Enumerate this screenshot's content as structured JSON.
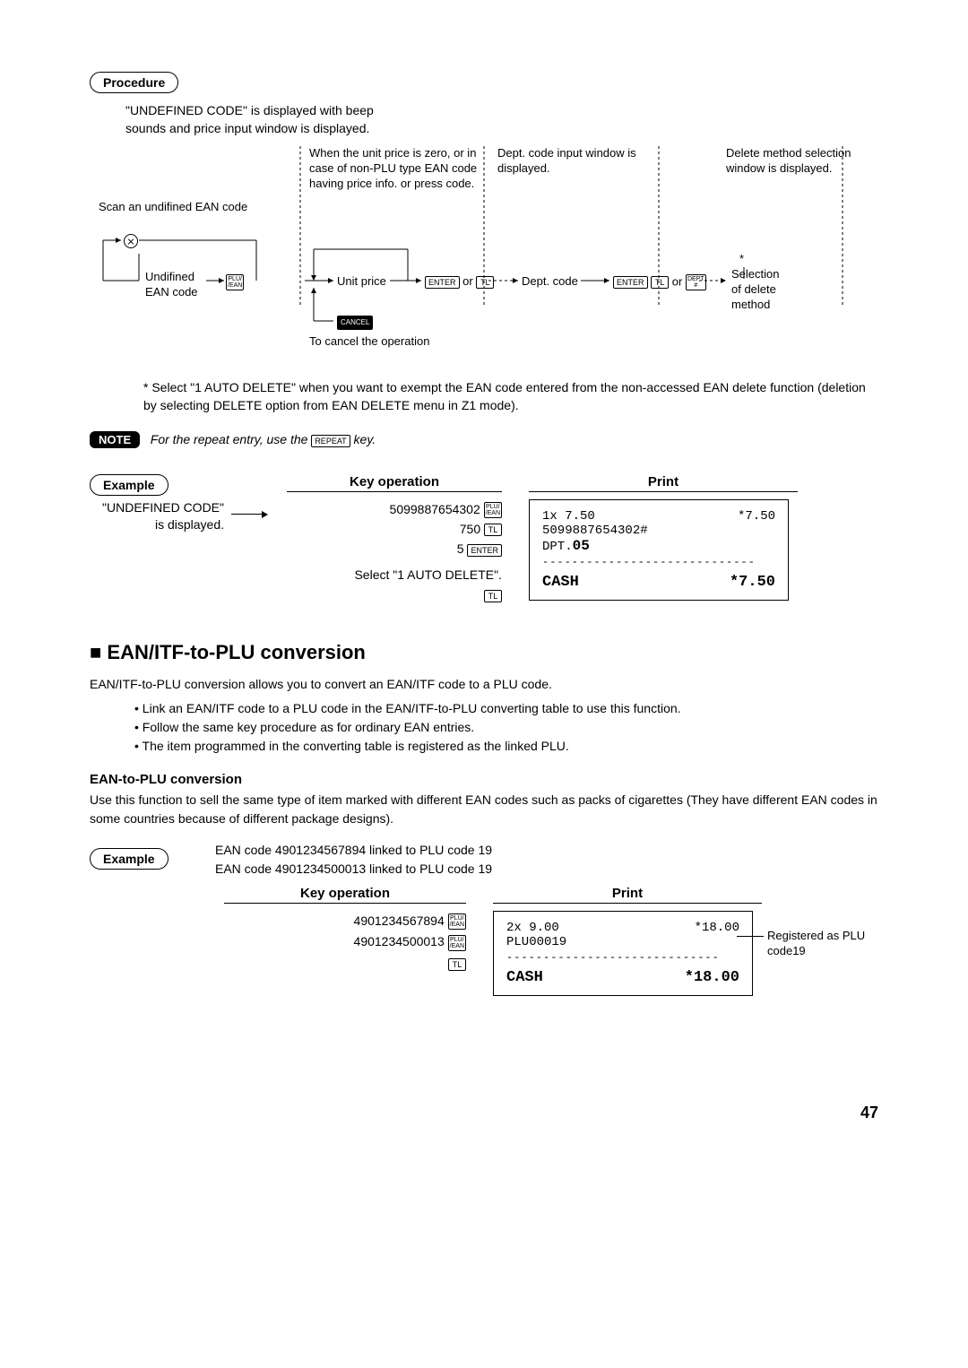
{
  "procedure": {
    "badge": "Procedure",
    "intro": "\"UNDEFINED CODE\" is displayed with beep sounds and price input window is displayed.",
    "scan_label": "Scan an undifined EAN code",
    "undefined_lines": [
      "Undifined",
      "EAN code"
    ],
    "unit_price_note": "When the unit price is zero, or in case of non-PLU type EAN code having price info. or press code.",
    "unit_price_label": "Unit price",
    "cancel_label": "To cancel the operation",
    "dept_window": "Dept. code input window is displayed.",
    "dept_label": "Dept. code",
    "delete_window": "Delete method selection window is displayed.",
    "selection_lines": [
      "Selection",
      "of delete",
      "method"
    ],
    "star": "*",
    "keys": {
      "plu": "PLU/\n/EAN",
      "enter": "ENTER",
      "tl": "TL",
      "dept": "DEPT\n#",
      "cancel": "CANCEL",
      "repeat": "REPEAT",
      "or": "or"
    },
    "footnote": "* Select \"1 AUTO DELETE\" when you want to exempt the EAN code entered from the non-accessed EAN delete function (deletion by selecting DELETE option from EAN DELETE menu in Z1 mode).",
    "note_badge": "NOTE",
    "note_text_before": "For the repeat entry, use the ",
    "note_text_after": " key."
  },
  "example1": {
    "badge": "Example",
    "key_operation_header": "Key operation",
    "print_header": "Print",
    "undefined_label": "\"UNDEFINED CODE\" is displayed.",
    "lines": [
      {
        "text": "5099887654302",
        "key": "PLU/\n/EAN"
      },
      {
        "text": "750",
        "key": "TL"
      },
      {
        "text": "5",
        "key": "ENTER"
      }
    ],
    "select_line": "Select \"1 AUTO DELETE\".",
    "select_key": "TL",
    "receipt": {
      "r1_left": "1x 7.50",
      "r1_right": "*7.50",
      "r2": "5099887654302#",
      "r3": "DPT.05",
      "sep": "-----------------------------",
      "cash_left": "CASH",
      "cash_right": "*7.50"
    }
  },
  "section2": {
    "heading": "EAN/ITF-to-PLU conversion",
    "intro": "EAN/ITF-to-PLU conversion allows you to convert an EAN/ITF code to a PLU code.",
    "bullets": [
      "Link an EAN/ITF code to a PLU code in the EAN/ITF-to-PLU converting table to use this function.",
      "Follow the same key procedure as for ordinary EAN entries.",
      "The item programmed in the converting table is registered as the linked PLU."
    ],
    "subhead": "EAN-to-PLU conversion",
    "subintro": "Use this function to sell the same type of item marked with different EAN codes such as packs of cigarettes (They have different EAN codes in some countries because of different package designs)."
  },
  "example2": {
    "badge": "Example",
    "lines": [
      "EAN code 4901234567894 linked to PLU code 19",
      "EAN code 4901234500013 linked to PLU code 19"
    ],
    "key_operation_header": "Key operation",
    "print_header": "Print",
    "ops": [
      {
        "text": "4901234567894",
        "key": "PLU/\n/EAN"
      },
      {
        "text": "4901234500013",
        "key": "PLU/\n/EAN"
      },
      {
        "text": "",
        "key": "TL"
      }
    ],
    "receipt": {
      "r1_left": "2x 9.00",
      "r1_right": "*18.00",
      "r2": "PLU00019",
      "sep": "-----------------------------",
      "cash_left": "CASH",
      "cash_right": "*18.00"
    },
    "side_note": "Registered as PLU code19"
  },
  "page_number": "47"
}
